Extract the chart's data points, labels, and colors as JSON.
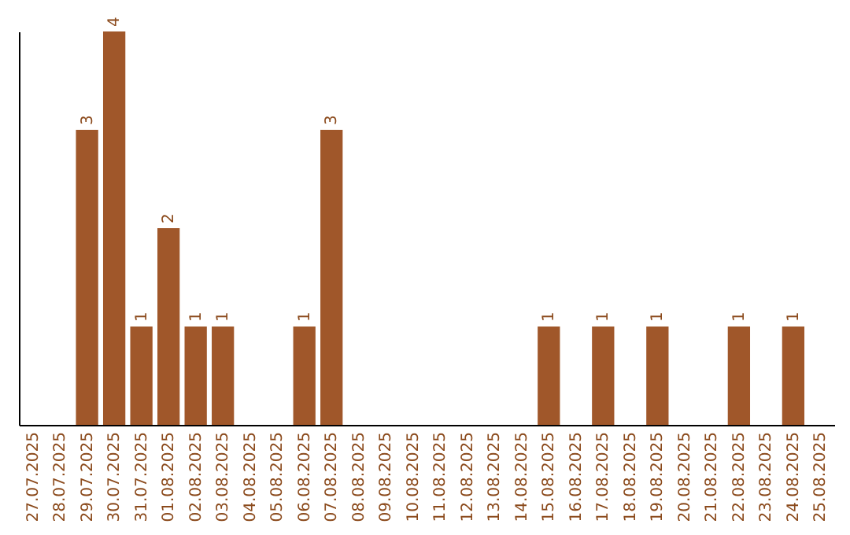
{
  "chart_data": {
    "type": "bar",
    "categories": [
      "27.07.2025",
      "28.07.2025",
      "29.07.2025",
      "30.07.2025",
      "31.07.2025",
      "01.08.2025",
      "02.08.2025",
      "03.08.2025",
      "04.08.2025",
      "05.08.2025",
      "06.08.2025",
      "07.08.2025",
      "08.08.2025",
      "09.08.2025",
      "10.08.2025",
      "11.08.2025",
      "12.08.2025",
      "13.08.2025",
      "14.08.2025",
      "15.08.2025",
      "16.08.2025",
      "17.08.2025",
      "18.08.2025",
      "19.08.2025",
      "20.08.2025",
      "21.08.2025",
      "22.08.2025",
      "23.08.2025",
      "24.08.2025",
      "25.08.2025"
    ],
    "values": [
      0,
      0,
      3,
      4,
      1,
      2,
      1,
      1,
      0,
      0,
      1,
      3,
      0,
      0,
      0,
      0,
      0,
      0,
      0,
      1,
      0,
      1,
      0,
      1,
      0,
      0,
      1,
      0,
      1,
      0
    ],
    "value_labels": [
      null,
      null,
      "3",
      "4",
      "1",
      "2",
      "1",
      "1",
      null,
      null,
      "1",
      "3",
      null,
      null,
      null,
      null,
      null,
      null,
      null,
      "1",
      null,
      "1",
      null,
      "1",
      null,
      null,
      "1",
      null,
      "1",
      null
    ],
    "color": "#a0572a",
    "tick_labels": "x"
  }
}
